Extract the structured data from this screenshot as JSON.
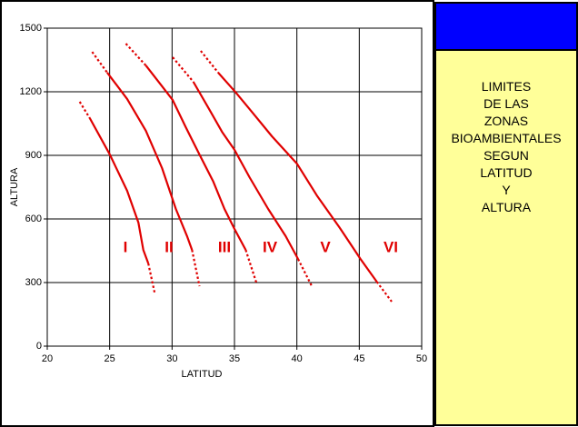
{
  "chart_data": {
    "type": "line",
    "xlabel": "LATITUD",
    "ylabel": "ALTURA",
    "xlim": [
      20,
      50
    ],
    "xticks": [
      20,
      25,
      30,
      35,
      40,
      45,
      50
    ],
    "ylim": [
      0,
      1500
    ],
    "yticks": [
      0,
      300,
      600,
      900,
      1200,
      1500
    ],
    "grid": true,
    "series": [
      {
        "color": "#e00000",
        "x": [
          22.6,
          23.4,
          25.0,
          26.4,
          27.3,
          27.7,
          28.1,
          28.6
        ],
        "values": [
          1153,
          1076,
          905,
          733,
          583,
          454,
          390,
          253
        ]
      },
      {
        "color": "#e00000",
        "x": [
          23.6,
          24.8,
          26.4,
          27.9,
          29.2,
          30.3,
          31.2,
          31.6,
          32.2
        ],
        "values": [
          1388,
          1291,
          1166,
          1016,
          840,
          647,
          519,
          454,
          283
        ]
      },
      {
        "color": "#e00000",
        "x": [
          26.3,
          27.9,
          29.2,
          30.05,
          31.1,
          32.2,
          33.3,
          34.2,
          35.0,
          35.9,
          36.8
        ],
        "values": [
          1427,
          1324,
          1226,
          1161,
          1033,
          904,
          776,
          647,
          553,
          454,
          291
        ]
      },
      {
        "color": "#e00000",
        "x": [
          30.05,
          31.7,
          32.96,
          34.0,
          35.0,
          36.2,
          37.7,
          39.1,
          40.1,
          41.2
        ],
        "values": [
          1363,
          1247,
          1119,
          1011,
          926,
          797,
          647,
          519,
          411,
          283
        ]
      },
      {
        "color": "#e00000",
        "x": [
          32.3,
          33.7,
          35.0,
          36.2,
          38.0,
          40.0,
          41.6,
          43.4,
          45.1,
          46.4,
          47.6
        ],
        "values": [
          1393,
          1290,
          1204,
          1119,
          990,
          861,
          711,
          561,
          411,
          304,
          210
        ]
      }
    ],
    "annotations": [
      "I",
      "II",
      "III",
      "IV",
      "V",
      "VI"
    ]
  },
  "side_panel": {
    "lines": [
      "LIMITES",
      "DE LAS",
      "ZONAS",
      "BIOAMBIENTALES",
      "SEGUN",
      "LATITUD",
      "Y",
      "ALTURA"
    ]
  }
}
